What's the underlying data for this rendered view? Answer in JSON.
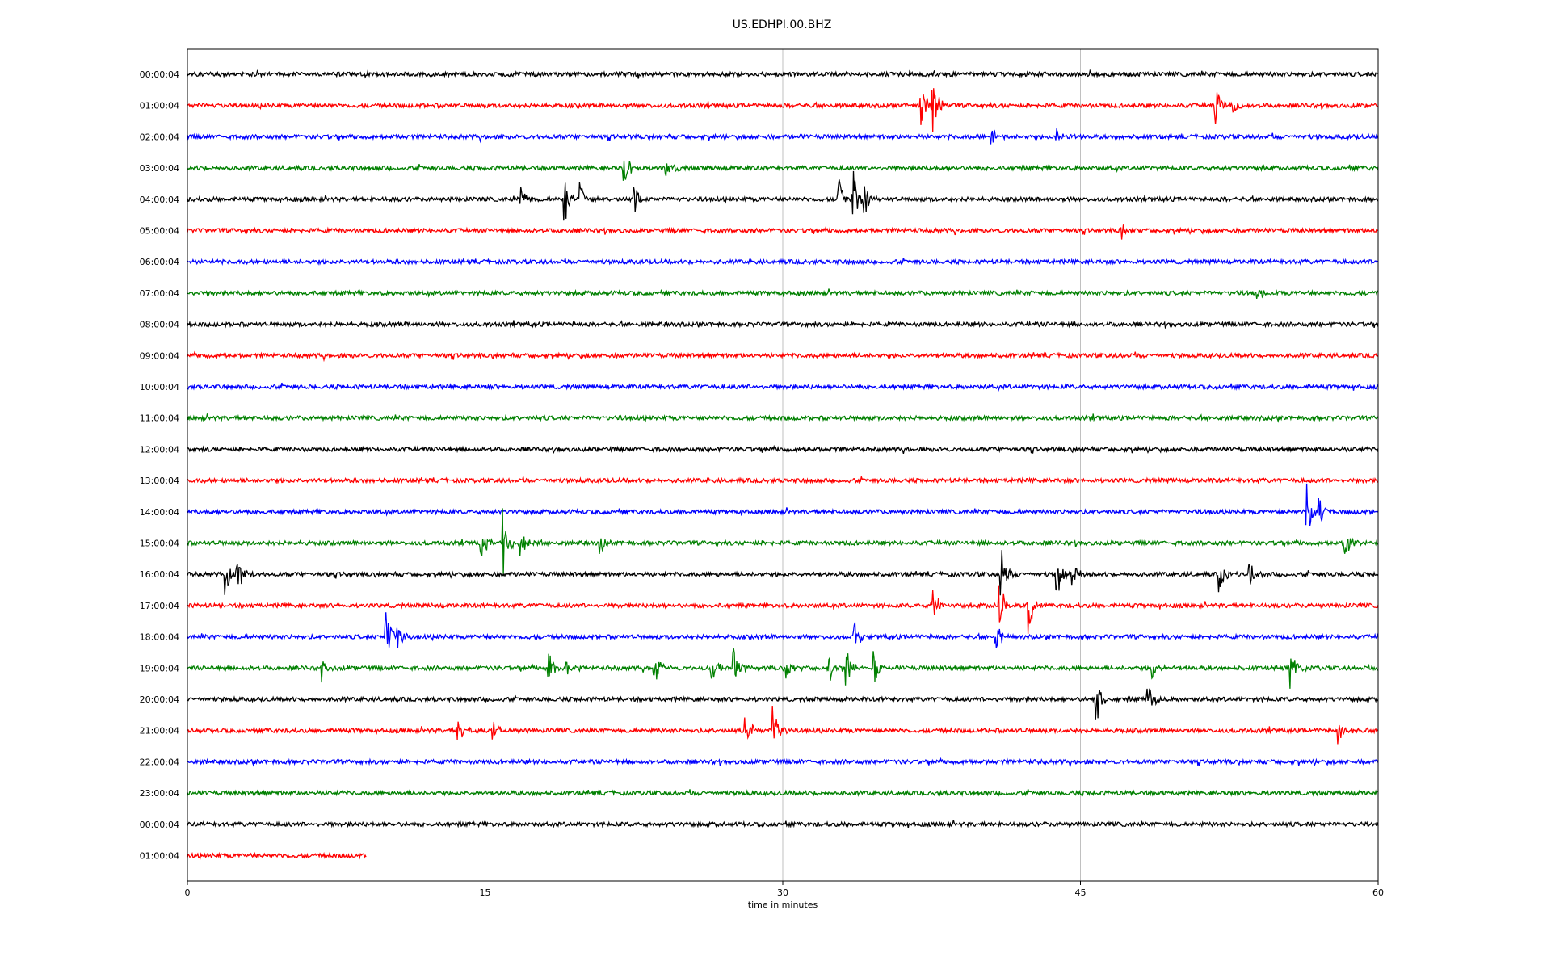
{
  "chart_data": {
    "type": "line",
    "title": "US.EDHPI.00.BHZ",
    "xlabel": "time in minutes",
    "ylabel": "",
    "xlim": [
      0,
      60
    ],
    "xticks": [
      0,
      15,
      30,
      45,
      60
    ],
    "grid_x": true,
    "color_cycle": [
      "#000000",
      "#ff0000",
      "#0000ff",
      "#008000"
    ],
    "series": [
      {
        "label": "00:00:04",
        "color": "#000000",
        "duration_min": 60,
        "events": []
      },
      {
        "label": "01:00:04",
        "color": "#ff0000",
        "duration_min": 60,
        "events": [
          {
            "t": 36.9,
            "amp": 0.9
          },
          {
            "t": 37.5,
            "amp": 1.0
          },
          {
            "t": 51.8,
            "amp": 0.6
          },
          {
            "t": 52.7,
            "amp": 0.3
          }
        ]
      },
      {
        "label": "02:00:04",
        "color": "#0000ff",
        "duration_min": 60,
        "events": [
          {
            "t": 40.5,
            "amp": 0.3
          },
          {
            "t": 43.8,
            "amp": 0.2
          }
        ]
      },
      {
        "label": "03:00:04",
        "color": "#008000",
        "duration_min": 60,
        "events": [
          {
            "t": 22.0,
            "amp": 0.5
          },
          {
            "t": 24.1,
            "amp": 0.4
          }
        ]
      },
      {
        "label": "04:00:04",
        "color": "#000000",
        "duration_min": 60,
        "events": [
          {
            "t": 16.8,
            "amp": 0.3
          },
          {
            "t": 19.0,
            "amp": 0.7
          },
          {
            "t": 19.8,
            "amp": 0.5
          },
          {
            "t": 22.5,
            "amp": 0.4
          },
          {
            "t": 32.8,
            "amp": 0.7
          },
          {
            "t": 33.5,
            "amp": 1.0
          },
          {
            "t": 34.1,
            "amp": 0.5
          }
        ]
      },
      {
        "label": "05:00:04",
        "color": "#ff0000",
        "duration_min": 60,
        "events": [
          {
            "t": 47.0,
            "amp": 0.3
          }
        ]
      },
      {
        "label": "06:00:04",
        "color": "#0000ff",
        "duration_min": 60,
        "events": []
      },
      {
        "label": "07:00:04",
        "color": "#008000",
        "duration_min": 60,
        "events": [
          {
            "t": 53.9,
            "amp": 0.2
          }
        ]
      },
      {
        "label": "08:00:04",
        "color": "#000000",
        "duration_min": 60,
        "events": []
      },
      {
        "label": "09:00:04",
        "color": "#ff0000",
        "duration_min": 60,
        "events": []
      },
      {
        "label": "10:00:04",
        "color": "#0000ff",
        "duration_min": 60,
        "events": []
      },
      {
        "label": "11:00:04",
        "color": "#008000",
        "duration_min": 60,
        "events": []
      },
      {
        "label": "12:00:04",
        "color": "#000000",
        "duration_min": 60,
        "events": []
      },
      {
        "label": "13:00:04",
        "color": "#ff0000",
        "duration_min": 60,
        "events": []
      },
      {
        "label": "14:00:04",
        "color": "#0000ff",
        "duration_min": 60,
        "events": [
          {
            "t": 56.4,
            "amp": 0.9
          },
          {
            "t": 57.0,
            "amp": 0.5
          }
        ]
      },
      {
        "label": "15:00:04",
        "color": "#008000",
        "duration_min": 60,
        "events": [
          {
            "t": 14.8,
            "amp": 0.5
          },
          {
            "t": 15.9,
            "amp": 1.0
          },
          {
            "t": 16.8,
            "amp": 0.6
          },
          {
            "t": 20.8,
            "amp": 0.3
          },
          {
            "t": 58.3,
            "amp": 0.6
          }
        ]
      },
      {
        "label": "16:00:04",
        "color": "#000000",
        "duration_min": 60,
        "events": [
          {
            "t": 1.9,
            "amp": 0.7
          },
          {
            "t": 2.5,
            "amp": 0.6
          },
          {
            "t": 41.0,
            "amp": 1.0
          },
          {
            "t": 43.8,
            "amp": 1.0
          },
          {
            "t": 44.6,
            "amp": 0.4
          },
          {
            "t": 52.0,
            "amp": 0.5
          },
          {
            "t": 53.5,
            "amp": 0.4
          }
        ]
      },
      {
        "label": "17:00:04",
        "color": "#ff0000",
        "duration_min": 60,
        "events": [
          {
            "t": 37.5,
            "amp": 0.9
          },
          {
            "t": 40.9,
            "amp": 0.8
          },
          {
            "t": 42.3,
            "amp": 1.0
          }
        ]
      },
      {
        "label": "18:00:04",
        "color": "#0000ff",
        "duration_min": 60,
        "events": [
          {
            "t": 10.0,
            "amp": 0.7
          },
          {
            "t": 10.6,
            "amp": 0.4
          },
          {
            "t": 33.6,
            "amp": 0.5
          },
          {
            "t": 40.7,
            "amp": 0.6
          }
        ]
      },
      {
        "label": "19:00:04",
        "color": "#008000",
        "duration_min": 60,
        "events": [
          {
            "t": 6.8,
            "amp": 0.3
          },
          {
            "t": 18.2,
            "amp": 0.5
          },
          {
            "t": 19.1,
            "amp": 0.3
          },
          {
            "t": 23.5,
            "amp": 0.6
          },
          {
            "t": 26.4,
            "amp": 0.6
          },
          {
            "t": 27.5,
            "amp": 0.7
          },
          {
            "t": 30.2,
            "amp": 0.4
          },
          {
            "t": 32.3,
            "amp": 0.5
          },
          {
            "t": 33.2,
            "amp": 0.7
          },
          {
            "t": 34.6,
            "amp": 0.5
          },
          {
            "t": 48.6,
            "amp": 0.3
          },
          {
            "t": 55.6,
            "amp": 0.7
          }
        ]
      },
      {
        "label": "20:00:04",
        "color": "#000000",
        "duration_min": 60,
        "events": [
          {
            "t": 45.8,
            "amp": 0.8
          },
          {
            "t": 48.3,
            "amp": 0.8
          }
        ]
      },
      {
        "label": "21:00:04",
        "color": "#ff0000",
        "duration_min": 60,
        "events": [
          {
            "t": 13.6,
            "amp": 0.5
          },
          {
            "t": 15.4,
            "amp": 0.3
          },
          {
            "t": 28.1,
            "amp": 0.6
          },
          {
            "t": 29.5,
            "amp": 0.8
          },
          {
            "t": 58.0,
            "amp": 0.5
          }
        ]
      },
      {
        "label": "22:00:04",
        "color": "#0000ff",
        "duration_min": 60,
        "events": []
      },
      {
        "label": "23:00:04",
        "color": "#008000",
        "duration_min": 60,
        "events": []
      },
      {
        "label": "00:00:04",
        "color": "#000000",
        "duration_min": 60,
        "events": []
      },
      {
        "label": "01:00:04",
        "color": "#ff0000",
        "duration_min": 9.0,
        "events": []
      }
    ]
  }
}
